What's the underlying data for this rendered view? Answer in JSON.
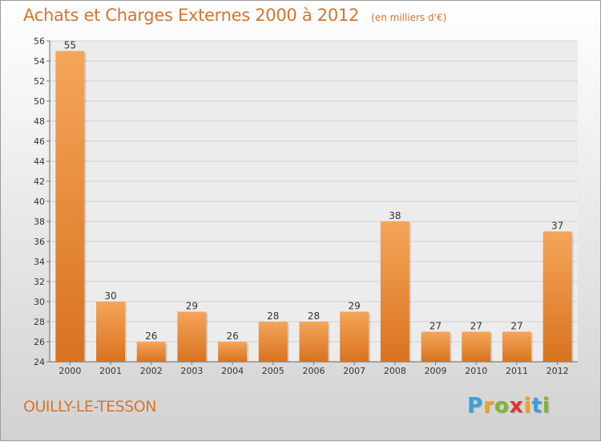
{
  "chart_data": {
    "type": "bar",
    "title": "Achats et Charges Externes 2000 à 2012",
    "subtitle": "(en milliers d'€)",
    "categories": [
      "2000",
      "2001",
      "2002",
      "2003",
      "2004",
      "2005",
      "2006",
      "2007",
      "2008",
      "2009",
      "2010",
      "2011",
      "2012"
    ],
    "values": [
      55,
      30,
      26,
      29,
      26,
      28,
      28,
      29,
      38,
      27,
      27,
      27,
      37
    ],
    "ylim": [
      24,
      56
    ],
    "yticks": [
      24,
      26,
      28,
      30,
      32,
      34,
      36,
      38,
      40,
      42,
      44,
      46,
      48,
      50,
      52,
      54,
      56
    ],
    "grid": true,
    "bar_color_light": "#f5a55a",
    "bar_color_dark": "#d8731f",
    "accent": "#d8742e"
  },
  "location": "OUILLY-LE-TESSON",
  "brand": {
    "letters": [
      "P",
      "r",
      "o",
      "x",
      "i",
      "t",
      "i"
    ],
    "colors": [
      "#3aa0d8",
      "#f2a020",
      "#7cb832",
      "#e0342a",
      "#f2a020",
      "#3aa0d8",
      "#7cb832"
    ]
  }
}
